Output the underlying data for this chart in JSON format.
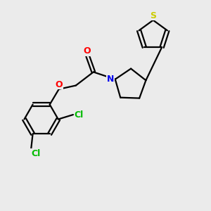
{
  "background_color": "#ebebeb",
  "bond_color": "#000000",
  "atom_colors": {
    "S": "#cccc00",
    "N": "#0000ee",
    "O": "#ff0000",
    "Cl": "#00bb00",
    "C": "#000000"
  },
  "figsize": [
    3.0,
    3.0
  ],
  "dpi": 100,
  "lw": 1.6
}
